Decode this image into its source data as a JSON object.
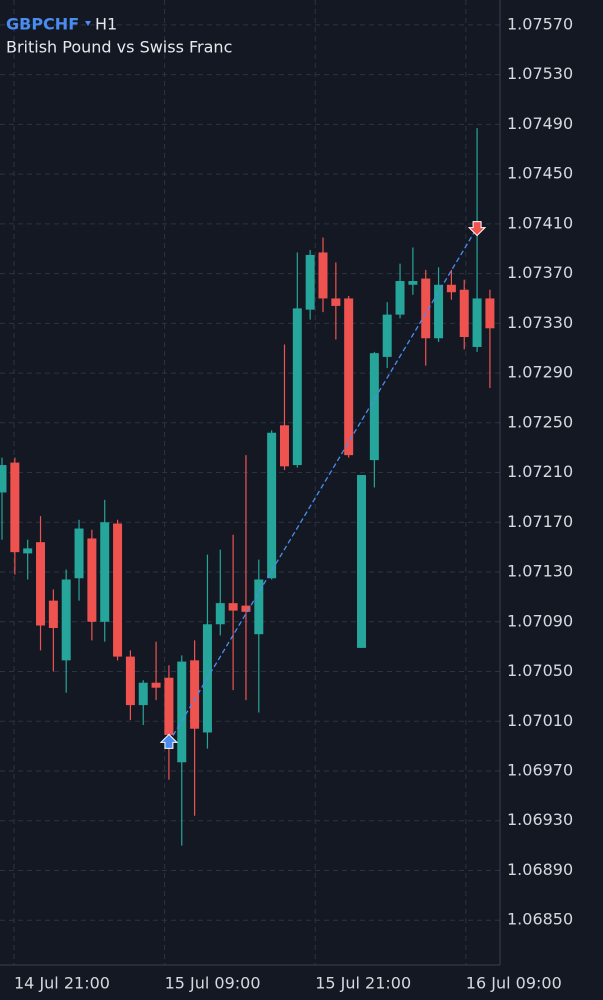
{
  "chart_data": {
    "type": "candlestick",
    "symbol": "GBPCHF",
    "timeframe": "H1",
    "subtitle": "British Pound vs Swiss Franc",
    "up_color": "#26a69a",
    "down_color": "#ef5350",
    "grid": true,
    "open": [
      1.07194,
      1.07218,
      1.07145,
      1.07154,
      1.07107,
      1.07059,
      1.07125,
      1.07157,
      1.0709,
      1.07169,
      1.07062,
      1.07023,
      1.07041,
      1.07045,
      1.06977,
      1.07059,
      1.07001,
      1.07088,
      1.07105,
      1.07103,
      1.0708,
      1.07125,
      1.07248,
      1.07216,
      1.07341,
      1.07387,
      1.0735,
      1.0735,
      1.07069,
      1.0722,
      1.07303,
      1.07337,
      1.07361,
      1.07366,
      1.07318,
      1.07361,
      1.07357,
      1.07311,
      1.0735
    ],
    "high": [
      1.07222,
      1.07222,
      1.07156,
      1.07175,
      1.07116,
      1.07132,
      1.07172,
      1.07164,
      1.07188,
      1.07172,
      1.07067,
      1.07043,
      1.07074,
      1.07055,
      1.07063,
      1.07075,
      1.07144,
      1.07148,
      1.0716,
      1.07224,
      1.0714,
      1.07244,
      1.07313,
      1.07387,
      1.07389,
      1.07399,
      1.07379,
      1.07352,
      1.07208,
      1.07307,
      1.07347,
      1.07378,
      1.07391,
      1.07373,
      1.07375,
      1.07373,
      1.07365,
      1.07487,
      1.07357
    ],
    "low": [
      1.07156,
      1.07128,
      1.07124,
      1.07067,
      1.0705,
      1.07033,
      1.07107,
      1.07075,
      1.07074,
      1.07059,
      1.07011,
      1.07007,
      1.07027,
      1.06963,
      1.0691,
      1.06934,
      1.06988,
      1.07079,
      1.07035,
      1.07027,
      1.07017,
      1.07124,
      1.07212,
      1.07214,
      1.07333,
      1.07339,
      1.07317,
      1.07222,
      1.07069,
      1.07198,
      1.07294,
      1.07334,
      1.07353,
      1.07296,
      1.07315,
      1.07349,
      1.07309,
      1.07307,
      1.07278
    ],
    "close": [
      1.07216,
      1.07146,
      1.07149,
      1.07087,
      1.07085,
      1.07124,
      1.07165,
      1.0709,
      1.0717,
      1.07062,
      1.07023,
      1.07041,
      1.07037,
      1.06999,
      1.07058,
      1.07004,
      1.07088,
      1.07105,
      1.07099,
      1.07098,
      1.07124,
      1.07242,
      1.07215,
      1.07342,
      1.07385,
      1.0735,
      1.07344,
      1.07224,
      1.07208,
      1.07306,
      1.07337,
      1.07364,
      1.07364,
      1.07318,
      1.07361,
      1.07355,
      1.07319,
      1.0735,
      1.07326
    ],
    "ylim": [
      1.06814,
      1.0759
    ],
    "yticks": [
      {
        "value": 1.0757,
        "label": "1.07570"
      },
      {
        "value": 1.0753,
        "label": "1.07530"
      },
      {
        "value": 1.0749,
        "label": "1.07490"
      },
      {
        "value": 1.0745,
        "label": "1.07450"
      },
      {
        "value": 1.0741,
        "label": "1.07410"
      },
      {
        "value": 1.0737,
        "label": "1.07370"
      },
      {
        "value": 1.0733,
        "label": "1.07330"
      },
      {
        "value": 1.0729,
        "label": "1.07290"
      },
      {
        "value": 1.0725,
        "label": "1.07250"
      },
      {
        "value": 1.0721,
        "label": "1.07210"
      },
      {
        "value": 1.0717,
        "label": "1.07170"
      },
      {
        "value": 1.0713,
        "label": "1.07130"
      },
      {
        "value": 1.0709,
        "label": "1.07090"
      },
      {
        "value": 1.0705,
        "label": "1.07050"
      },
      {
        "value": 1.0701,
        "label": "1.07010"
      },
      {
        "value": 1.0697,
        "label": "1.06970"
      },
      {
        "value": 1.0693,
        "label": "1.06930"
      },
      {
        "value": 1.0689,
        "label": "1.06890"
      },
      {
        "value": 1.0685,
        "label": "1.06850"
      }
    ],
    "xtick_labels": [
      "14 Jul 21:00",
      "15 Jul 09:00",
      "15 Jul 21:00",
      "16 Jul 09:00"
    ],
    "trade": {
      "entry_index": 13,
      "entry": 1.06993,
      "exit_index": 37,
      "exit": 1.07407,
      "color": "#4a8cf0"
    }
  }
}
